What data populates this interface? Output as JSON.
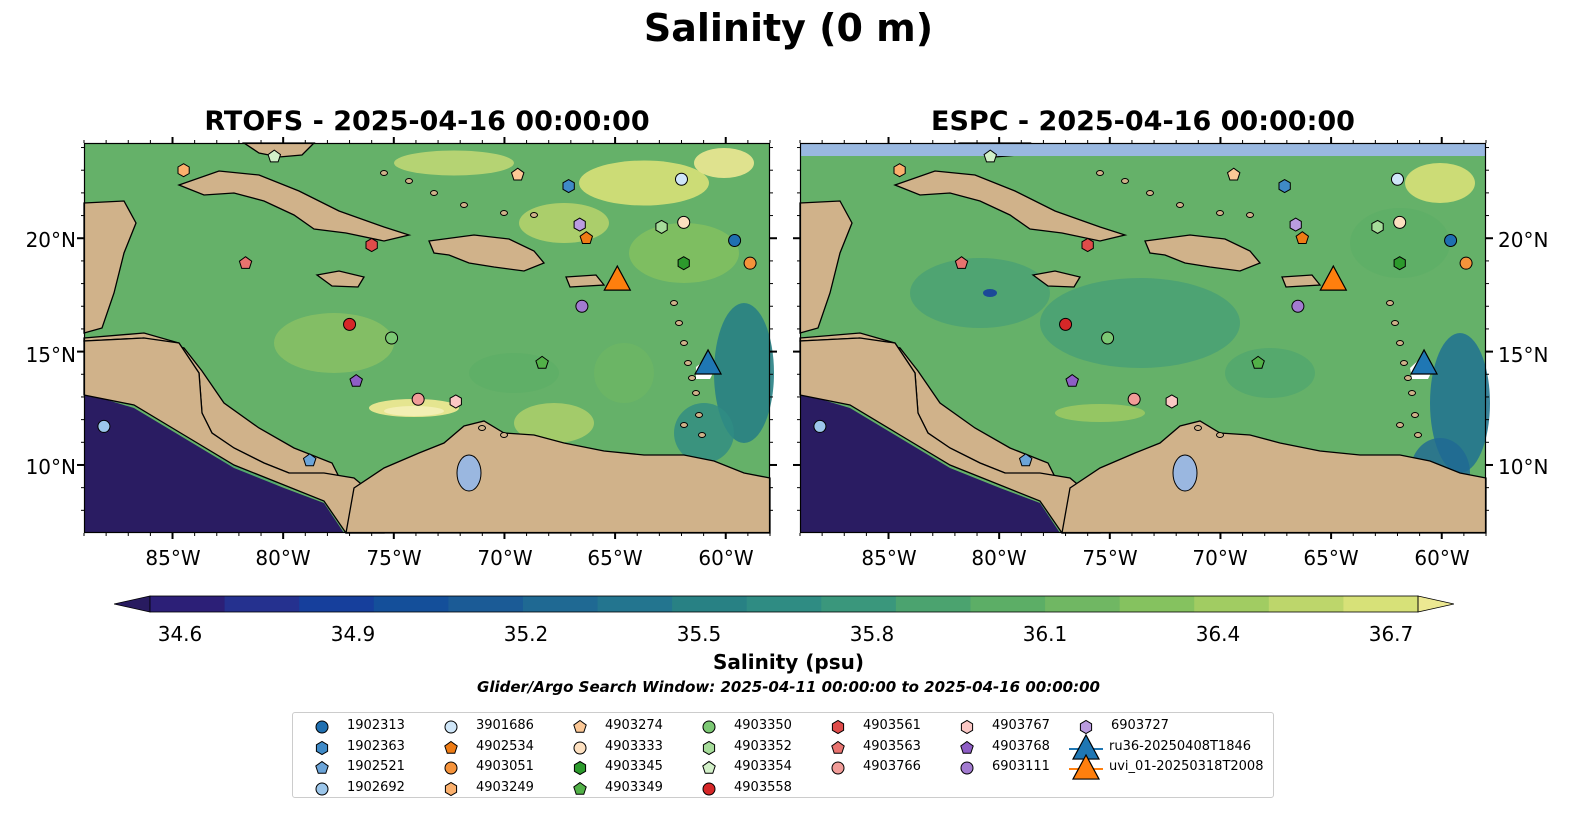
{
  "figure": {
    "suptitle": "Salinity (0 m)",
    "panels": [
      {
        "title": "RTOFS - 2025-04-16 00:00:00"
      },
      {
        "title": "ESPC - 2025-04-16 00:00:00"
      }
    ],
    "lat_ticks": [
      "20°N",
      "15°N",
      "10°N"
    ],
    "lon_ticks": [
      "85°W",
      "80°W",
      "75°W",
      "70°W",
      "65°W",
      "60°W"
    ],
    "colorbar": {
      "label": "Salinity (psu)",
      "ticks": [
        "34.6",
        "34.9",
        "35.2",
        "35.5",
        "35.8",
        "36.1",
        "36.4",
        "36.7"
      ],
      "colors": [
        "#281b60",
        "#2c1f77",
        "#25318f",
        "#163f9c",
        "#144f9a",
        "#1b5b96",
        "#1f6993",
        "#23758f",
        "#288184",
        "#2f8c83",
        "#3a977c",
        "#4ba36f",
        "#5cae66",
        "#70b763",
        "#85c25f",
        "#a1cc62",
        "#bdd66b",
        "#d7e178",
        "#ece892"
      ],
      "ocean_fill": "#65b169",
      "land_color": "#d0b28a",
      "deep_color": "#2a1c62"
    },
    "search_window": "Glider/Argo Search Window: 2025-04-11 00:00:00 to 2025-04-16 00:00:00",
    "legend": [
      {
        "label": "1902313",
        "color": "#1f6fb0",
        "marker": "circle"
      },
      {
        "label": "1902363",
        "color": "#3f8ac7",
        "marker": "hexagon"
      },
      {
        "label": "1902521",
        "color": "#6ba4d8",
        "marker": "pentagon"
      },
      {
        "label": "1902692",
        "color": "#9cc6ea",
        "marker": "circle"
      },
      {
        "label": "3901686",
        "color": "#cfe6f8",
        "marker": "circle"
      },
      {
        "label": "4902534",
        "color": "#ee7c15",
        "marker": "pentagon"
      },
      {
        "label": "4903051",
        "color": "#f5933b",
        "marker": "circle"
      },
      {
        "label": "4903249",
        "color": "#fbb06d",
        "marker": "hexagon"
      },
      {
        "label": "4903274",
        "color": "#fcc896",
        "marker": "pentagon"
      },
      {
        "label": "4903333",
        "color": "#fde0c0",
        "marker": "circle"
      },
      {
        "label": "4903345",
        "color": "#2c9a2c",
        "marker": "hexagon"
      },
      {
        "label": "4903349",
        "color": "#52b148",
        "marker": "pentagon"
      },
      {
        "label": "4903350",
        "color": "#7cc874",
        "marker": "circle"
      },
      {
        "label": "4903352",
        "color": "#a6dc9a",
        "marker": "hexagon"
      },
      {
        "label": "4903354",
        "color": "#d2f0c8",
        "marker": "pentagon"
      },
      {
        "label": "4903558",
        "color": "#d62728",
        "marker": "circle"
      },
      {
        "label": "4903561",
        "color": "#df4c4a",
        "marker": "hexagon"
      },
      {
        "label": "4903563",
        "color": "#e8736f",
        "marker": "pentagon"
      },
      {
        "label": "4903766",
        "color": "#f19c98",
        "marker": "circle"
      },
      {
        "label": "4903767",
        "color": "#fbc8c5",
        "marker": "hexagon"
      },
      {
        "label": "4903768",
        "color": "#8e5ec5",
        "marker": "pentagon"
      },
      {
        "label": "6903111",
        "color": "#a27bd0",
        "marker": "circle"
      },
      {
        "label": "6903727",
        "color": "#bb9ce0",
        "marker": "hexagon"
      },
      {
        "label": "ru36-20250408T1846",
        "color": "#1f77b4",
        "marker": "triangle"
      },
      {
        "label": "uvi_01-20250318T2008",
        "color": "#ff7f0e",
        "marker": "triangle"
      }
    ]
  },
  "map_data": {
    "lon_range": [
      -89,
      -58
    ],
    "lat_range": [
      7,
      24.2
    ],
    "floats": [
      {
        "id": "4903249",
        "lon": -84.5,
        "lat": 23.0
      },
      {
        "id": "4903354",
        "lon": -80.4,
        "lat": 23.6
      },
      {
        "id": "4903274",
        "lon": -69.4,
        "lat": 22.8
      },
      {
        "id": "1902363",
        "lon": -67.1,
        "lat": 22.3
      },
      {
        "id": "3901686",
        "lon": -62.0,
        "lat": 22.6
      },
      {
        "id": "6903727",
        "lon": -66.6,
        "lat": 20.6
      },
      {
        "id": "4902534",
        "lon": -66.3,
        "lat": 20.0
      },
      {
        "id": "4903352",
        "lon": -62.9,
        "lat": 20.5
      },
      {
        "id": "4903333",
        "lon": -61.9,
        "lat": 20.7
      },
      {
        "id": "1902313",
        "lon": -59.6,
        "lat": 19.9
      },
      {
        "id": "4903051",
        "lon": -58.9,
        "lat": 18.9
      },
      {
        "id": "4903345",
        "lon": -61.9,
        "lat": 18.9
      },
      {
        "id": "4903561",
        "lon": -76.0,
        "lat": 19.7
      },
      {
        "id": "4903563",
        "lon": -81.7,
        "lat": 18.9
      },
      {
        "id": "6903111",
        "lon": -66.5,
        "lat": 17.0
      },
      {
        "id": "4903558",
        "lon": -77.0,
        "lat": 16.2
      },
      {
        "id": "4903350",
        "lon": -75.1,
        "lat": 15.6
      },
      {
        "id": "4903349",
        "lon": -68.3,
        "lat": 14.5
      },
      {
        "id": "4903768",
        "lon": -76.7,
        "lat": 13.7
      },
      {
        "id": "4903766",
        "lon": -73.9,
        "lat": 12.9
      },
      {
        "id": "4903767",
        "lon": -72.2,
        "lat": 12.8
      },
      {
        "id": "1902692",
        "lon": -88.1,
        "lat": 11.7
      },
      {
        "id": "1902521",
        "lon": -78.8,
        "lat": 10.2
      }
    ],
    "gliders": [
      {
        "id": "uvi_01-20250318T2008",
        "lon": -64.9,
        "lat": 18.2
      },
      {
        "id": "ru36-20250408T1846",
        "lon": -60.8,
        "lat": 14.5
      }
    ]
  }
}
